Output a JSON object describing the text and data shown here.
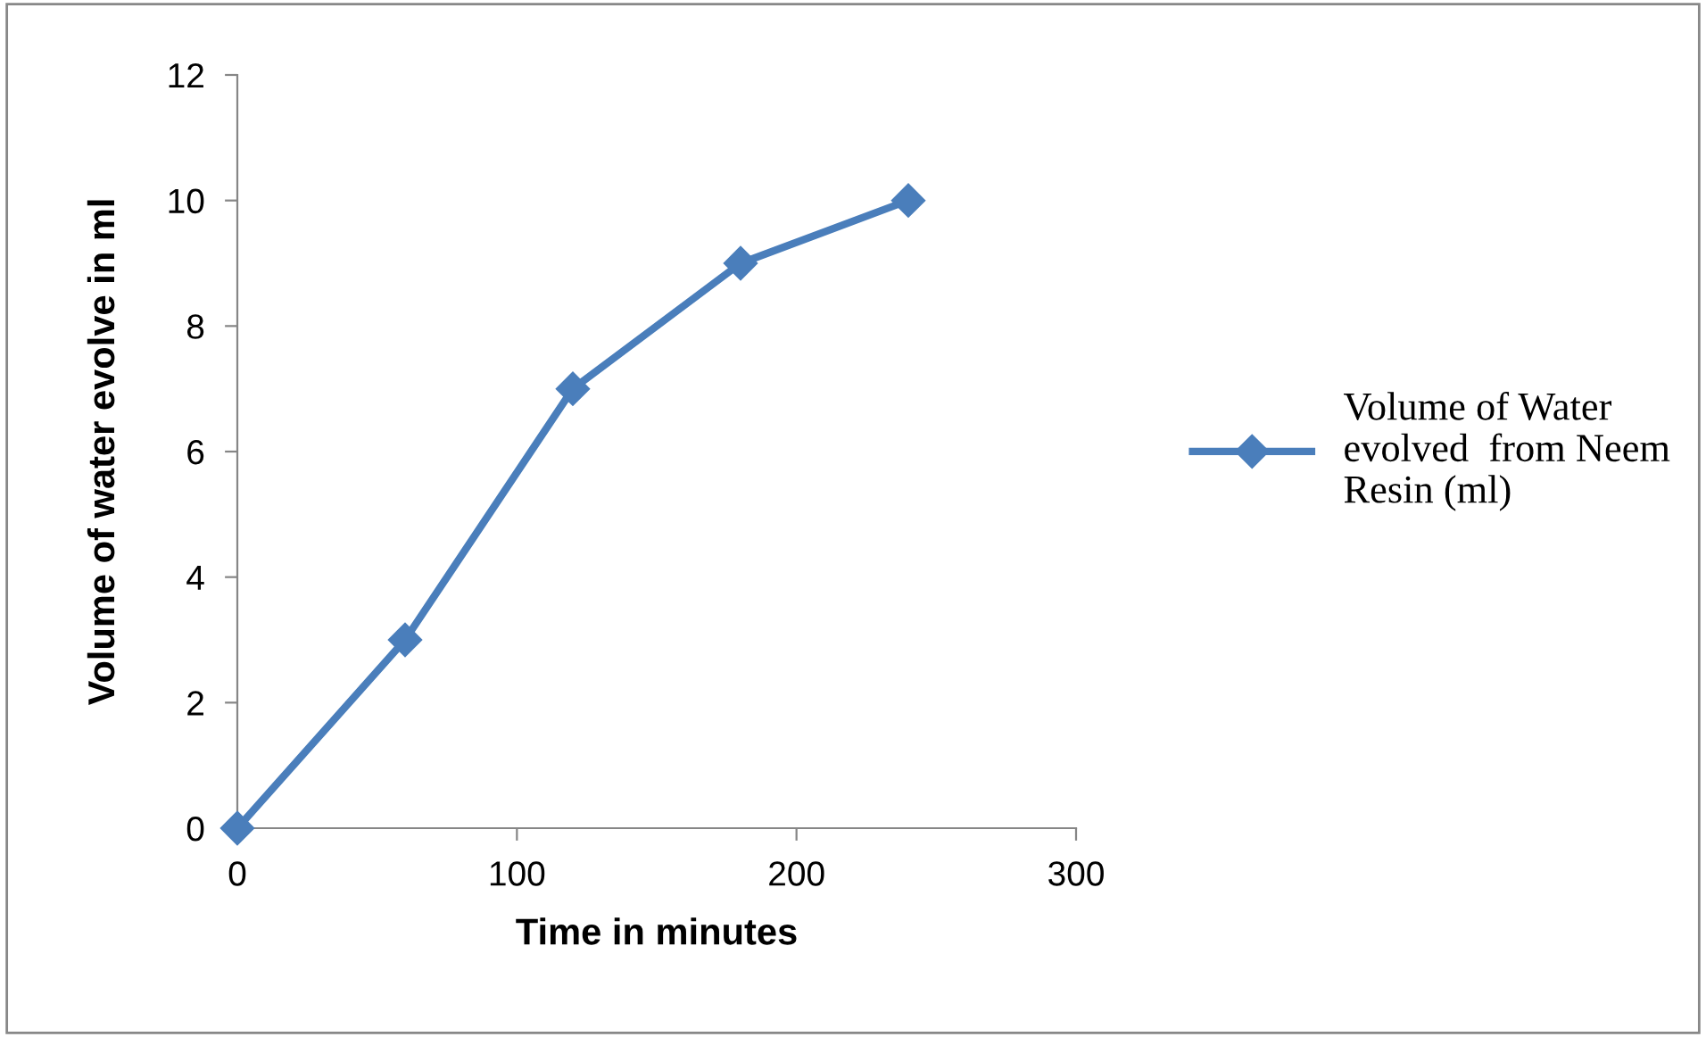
{
  "chart_data": {
    "type": "line",
    "xlabel": "Time in minutes",
    "ylabel": "Volume of water evolve in ml",
    "x": [
      0,
      60,
      120,
      180,
      240
    ],
    "series": [
      {
        "name": "Volume of Water\nevolved  from Neem\nResin (ml)",
        "color": "#4a7ebb",
        "values": [
          0,
          3,
          7,
          9,
          10
        ]
      }
    ],
    "xlim": [
      0,
      300
    ],
    "xticks": [
      0,
      100,
      200,
      300
    ],
    "ylim": [
      0,
      12
    ],
    "yticks": [
      0,
      2,
      4,
      6,
      8,
      10,
      12
    ],
    "marker": "diamond",
    "line_style": "solid",
    "grid": false,
    "legend": "right"
  }
}
